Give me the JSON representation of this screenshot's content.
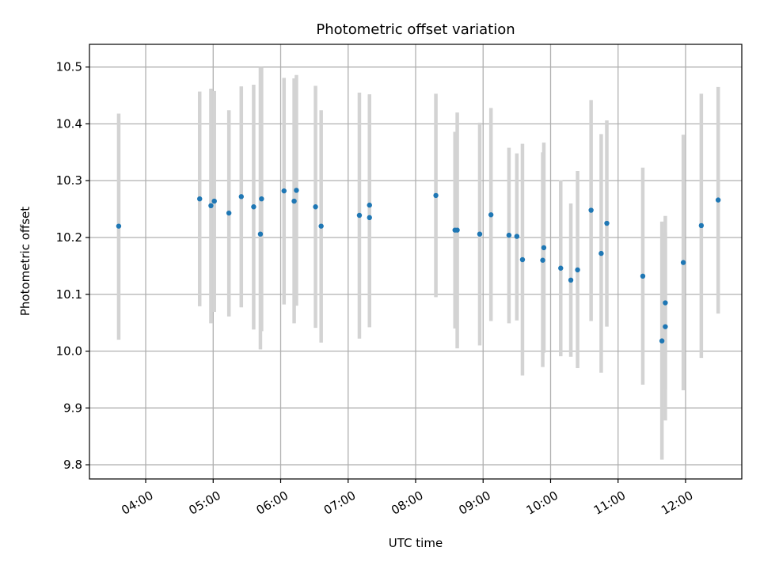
{
  "chart_data": {
    "type": "scatter",
    "title": "Photometric offset variation",
    "xlabel": "UTC time",
    "ylabel": "Photometric offset",
    "grid": true,
    "xlim": [
      "03:10",
      "12:50"
    ],
    "ylim": [
      9.775,
      10.54
    ],
    "x_ticks": [
      "04:00",
      "05:00",
      "06:00",
      "07:00",
      "08:00",
      "09:00",
      "10:00",
      "11:00",
      "12:00"
    ],
    "y_ticks": [
      "9.8",
      "9.9",
      "10.0",
      "10.1",
      "10.2",
      "10.3",
      "10.4",
      "10.5"
    ],
    "colors": {
      "point": "#1f77b4",
      "error_bar": "#d3d3d3",
      "grid": "#b0b0b0"
    },
    "series": [
      {
        "points": [
          {
            "x": "03:36",
            "y": 10.22,
            "err_low": 10.02,
            "err_high": 10.418
          },
          {
            "x": "04:48",
            "y": 10.268,
            "err_low": 10.079,
            "err_high": 10.457
          },
          {
            "x": "04:58",
            "y": 10.256,
            "err_low": 10.049,
            "err_high": 10.462
          },
          {
            "x": "05:01",
            "y": 10.264,
            "err_low": 10.069,
            "err_high": 10.458
          },
          {
            "x": "05:14",
            "y": 10.243,
            "err_low": 10.061,
            "err_high": 10.424
          },
          {
            "x": "05:25",
            "y": 10.272,
            "err_low": 10.077,
            "err_high": 10.466
          },
          {
            "x": "05:36",
            "y": 10.254,
            "err_low": 10.038,
            "err_high": 10.469
          },
          {
            "x": "05:42",
            "y": 10.206,
            "err_low": 10.003,
            "err_high": 10.5
          },
          {
            "x": "05:43",
            "y": 10.268,
            "err_low": 10.035,
            "err_high": 10.5
          },
          {
            "x": "06:03",
            "y": 10.282,
            "err_low": 10.082,
            "err_high": 10.481
          },
          {
            "x": "06:12",
            "y": 10.264,
            "err_low": 10.049,
            "err_high": 10.48
          },
          {
            "x": "06:14",
            "y": 10.283,
            "err_low": 10.08,
            "err_high": 10.486
          },
          {
            "x": "06:31",
            "y": 10.254,
            "err_low": 10.041,
            "err_high": 10.467
          },
          {
            "x": "06:36",
            "y": 10.22,
            "err_low": 10.015,
            "err_high": 10.424
          },
          {
            "x": "07:10",
            "y": 10.239,
            "err_low": 10.022,
            "err_high": 10.455
          },
          {
            "x": "07:19",
            "y": 10.235,
            "err_low": 10.042,
            "err_high": 10.452
          },
          {
            "x": "07:19",
            "y": 10.257,
            "err_low": 10.06,
            "err_high": 10.451
          },
          {
            "x": "08:18",
            "y": 10.274,
            "err_low": 10.095,
            "err_high": 10.453
          },
          {
            "x": "08:35",
            "y": 10.213,
            "err_low": 10.04,
            "err_high": 10.386
          },
          {
            "x": "08:37",
            "y": 10.213,
            "err_low": 10.005,
            "err_high": 10.42
          },
          {
            "x": "08:57",
            "y": 10.206,
            "err_low": 10.01,
            "err_high": 10.402
          },
          {
            "x": "09:07",
            "y": 10.24,
            "err_low": 10.053,
            "err_high": 10.428
          },
          {
            "x": "09:23",
            "y": 10.204,
            "err_low": 10.049,
            "err_high": 10.358
          },
          {
            "x": "09:30",
            "y": 10.202,
            "err_low": 10.054,
            "err_high": 10.348
          },
          {
            "x": "09:35",
            "y": 10.161,
            "err_low": 9.957,
            "err_high": 10.365
          },
          {
            "x": "09:53",
            "y": 10.16,
            "err_low": 9.972,
            "err_high": 10.35
          },
          {
            "x": "09:54",
            "y": 10.182,
            "err_low": 9.997,
            "err_high": 10.367
          },
          {
            "x": "10:09",
            "y": 10.146,
            "err_low": 9.991,
            "err_high": 10.301
          },
          {
            "x": "10:18",
            "y": 10.125,
            "err_low": 9.99,
            "err_high": 10.26
          },
          {
            "x": "10:24",
            "y": 10.143,
            "err_low": 9.97,
            "err_high": 10.317
          },
          {
            "x": "10:36",
            "y": 10.248,
            "err_low": 10.053,
            "err_high": 10.442
          },
          {
            "x": "10:45",
            "y": 10.172,
            "err_low": 9.962,
            "err_high": 10.382
          },
          {
            "x": "10:50",
            "y": 10.225,
            "err_low": 10.043,
            "err_high": 10.406
          },
          {
            "x": "11:22",
            "y": 10.132,
            "err_low": 9.941,
            "err_high": 10.323
          },
          {
            "x": "11:39",
            "y": 10.018,
            "err_low": 9.809,
            "err_high": 10.228
          },
          {
            "x": "11:42",
            "y": 10.085,
            "err_low": 9.932,
            "err_high": 10.238
          },
          {
            "x": "11:42",
            "y": 10.043,
            "err_low": 9.878,
            "err_high": 10.209
          },
          {
            "x": "11:58",
            "y": 10.156,
            "err_low": 9.931,
            "err_high": 10.381
          },
          {
            "x": "12:14",
            "y": 10.221,
            "err_low": 9.988,
            "err_high": 10.453
          },
          {
            "x": "12:29",
            "y": 10.266,
            "err_low": 10.066,
            "err_high": 10.465
          }
        ]
      }
    ]
  }
}
